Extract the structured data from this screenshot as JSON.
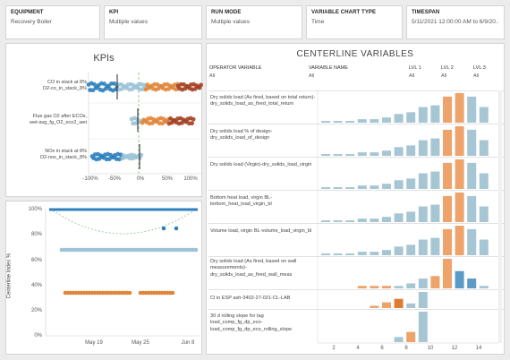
{
  "filters": [
    {
      "title": "EQUIPMENT",
      "value": "Recovery Boiler"
    },
    {
      "title": "KPI",
      "value": "Multiple values"
    },
    {
      "title": "RUN MODE",
      "value": "Multiple values"
    },
    {
      "title": "VARIABLE CHART TYPE",
      "value": "Time"
    },
    {
      "title": "TIMESPAN",
      "value": "5/11/2021 12:00:00 AM to 6/9/20..."
    }
  ],
  "kpis": {
    "title": "KPIs",
    "rows": [
      {
        "label": "CO in stack at 8%",
        "label2": "O2-co_in_stack_8%"
      },
      {
        "label": "Flue gas O2 after ECOs,",
        "label2": "wet-avg_fg_O2_eco2_wet"
      },
      {
        "label": "NOx in stack at 8%",
        "label2": "O2-nox_in_stack_8%"
      }
    ],
    "x_ticks": [
      "-100%",
      "-50%",
      "0%",
      "50%",
      "100%"
    ],
    "colors": {
      "blue": "#2e7fbd",
      "light_blue": "#9cc3d6",
      "orange": "#e0863a",
      "brown": "#a34022",
      "refline": "#7ac171"
    }
  },
  "scatter": {
    "y_axis_title": "Centerline Index %",
    "y_ticks": [
      "100%",
      "80%",
      "60%",
      "40%",
      "20%",
      "0%"
    ],
    "x_ticks": [
      "May 19",
      "May 25",
      "Jun 8"
    ]
  },
  "centerline": {
    "title": "CENTERLINE VARIABLES",
    "headers": [
      {
        "name": "OPERATOR VARIABLE",
        "value": "All"
      },
      {
        "name": "VARIABLE NAME",
        "value": "All"
      },
      {
        "name": "LVL 1",
        "value": "All"
      },
      {
        "name": "LVL 2",
        "value": "All"
      },
      {
        "name": "LVL 3",
        "value": "All"
      }
    ],
    "x_ticks": [
      "2",
      "4",
      "6",
      "8",
      "10",
      "12",
      "14"
    ],
    "colors": {
      "blue": "#a7c6d3",
      "orange": "#eda36a",
      "dark_blue": "#5b9bc6",
      "dark_orange": "#de7b33"
    },
    "rows": [
      {
        "label": "Dry solids load (As fired, based on total return)-dry_solids_load_as_fired_total_return",
        "bars": [
          1,
          1,
          1,
          2,
          2,
          3,
          5,
          6,
          9,
          10,
          15,
          17,
          15,
          9
        ],
        "highlight": [
          10,
          11
        ]
      },
      {
        "label": "Dry solids load % of design-dry_solids_load_of_design",
        "bars": [
          1,
          1,
          1,
          2,
          2,
          3,
          5,
          6,
          9,
          10,
          15,
          17,
          15,
          9
        ],
        "highlight": [
          10,
          11
        ]
      },
      {
        "label": "Dry solids load (Virgin)-dry_solids_load_virgin",
        "bars": [
          1,
          1,
          1,
          2,
          2,
          3,
          5,
          6,
          9,
          10,
          15,
          17,
          15,
          9
        ],
        "highlight": [
          10,
          11
        ]
      },
      {
        "label": "Bottom heat load, virgin BL-bottom_heat_load_virgin_bl",
        "bars": [
          1,
          1,
          1,
          2,
          2,
          3,
          5,
          6,
          9,
          10,
          15,
          17,
          15,
          9
        ],
        "highlight": [
          10,
          11
        ]
      },
      {
        "label": "Volume load, virgin BL-volume_load_virgin_bl",
        "bars": [
          1,
          1,
          1,
          2,
          2,
          3,
          5,
          6,
          9,
          10,
          15,
          17,
          15,
          9
        ],
        "highlight": [
          10,
          11
        ]
      },
      {
        "label": "Dry solids load (As fired, based on wall measurements)-dry_solids_load_as_fired_wall_meas",
        "bars": [
          0,
          0,
          0,
          1,
          1,
          1,
          1,
          2,
          4,
          5,
          12,
          7,
          4,
          1
        ],
        "highlight": [
          9,
          10
        ]
      },
      {
        "label": "Cl in ESP ash-3402-27-021-CL-LAB",
        "bars": [
          0,
          0,
          0,
          0,
          2,
          5,
          8,
          4,
          14,
          0,
          0,
          0,
          0,
          0
        ],
        "highlight": [
          5,
          6
        ]
      },
      {
        "label": "30 d rolling slope for tag load_comp_fg_dp_eco-load_comp_fg_dp_eco_rolling_slope",
        "bars": [
          0,
          0,
          0,
          0,
          0,
          0,
          2,
          4,
          12,
          0,
          0,
          0,
          0,
          0
        ],
        "highlight": [
          7
        ]
      }
    ]
  }
}
